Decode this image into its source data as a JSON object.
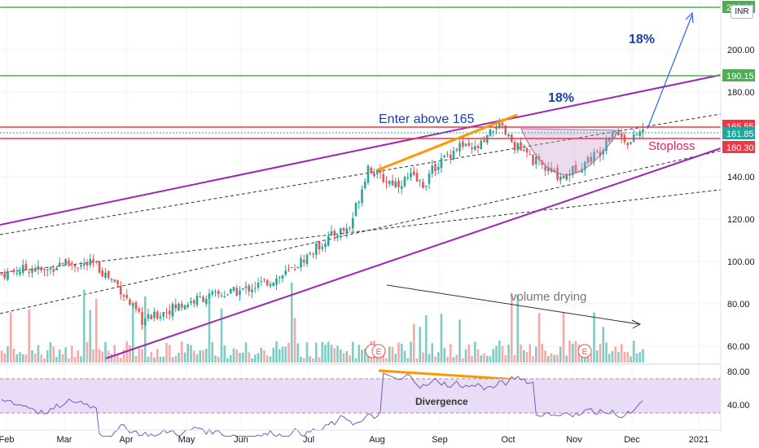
{
  "chart_data": {
    "type": "candlestick",
    "currency_badge": "INR",
    "y_ticks": [
      "80.00",
      "100.00",
      "120.00",
      "140.00",
      "160.00",
      "180.00",
      "200.00",
      "220.00"
    ],
    "x_ticks": [
      "Feb",
      "Mar",
      "Apr",
      "May",
      "Jun",
      "Jul",
      "Aug",
      "Sep",
      "Oct",
      "Nov",
      "Dec",
      "2021"
    ],
    "rsi_ticks": [
      "80.00",
      "40.00"
    ],
    "volume_ticks": [
      "80.00",
      "60.00"
    ],
    "ohlc_approx": [
      [
        0,
        94
      ],
      [
        6,
        96
      ],
      [
        10,
        97
      ],
      [
        14,
        95
      ],
      [
        20,
        100
      ],
      [
        26,
        98
      ],
      [
        30,
        99
      ],
      [
        34,
        94
      ],
      [
        38,
        89
      ],
      [
        42,
        80
      ],
      [
        46,
        72
      ],
      [
        50,
        74
      ],
      [
        54,
        77
      ],
      [
        58,
        79
      ],
      [
        62,
        81
      ],
      [
        66,
        83
      ],
      [
        70,
        84
      ],
      [
        74,
        85
      ],
      [
        78,
        86
      ],
      [
        82,
        88
      ],
      [
        86,
        90
      ],
      [
        90,
        92
      ],
      [
        94,
        95
      ],
      [
        98,
        100
      ],
      [
        102,
        105
      ],
      [
        106,
        110
      ],
      [
        110,
        114
      ],
      [
        114,
        116
      ],
      [
        116,
        126
      ],
      [
        118,
        135
      ],
      [
        120,
        145
      ],
      [
        122,
        142
      ],
      [
        126,
        138
      ],
      [
        130,
        137
      ],
      [
        134,
        140
      ],
      [
        138,
        136
      ],
      [
        142,
        145
      ],
      [
        146,
        150
      ],
      [
        150,
        155
      ],
      [
        154,
        152
      ],
      [
        158,
        156
      ],
      [
        160,
        160
      ],
      [
        162,
        165
      ],
      [
        164,
        162
      ],
      [
        166,
        158
      ],
      [
        168,
        155
      ],
      [
        172,
        150
      ],
      [
        176,
        146
      ],
      [
        180,
        142
      ],
      [
        184,
        140
      ],
      [
        188,
        144
      ],
      [
        192,
        148
      ],
      [
        196,
        152
      ],
      [
        198,
        158
      ],
      [
        200,
        162
      ],
      [
        202,
        160
      ],
      [
        204,
        158
      ],
      [
        206,
        156
      ],
      [
        208,
        160
      ],
      [
        210,
        162
      ]
    ],
    "price_labels": [
      {
        "text": "220.00",
        "color": "#4caf50"
      },
      {
        "text": "190.15",
        "color": "#4caf50"
      },
      {
        "text": "165.55",
        "color": "#f23645"
      },
      {
        "text": "161.85",
        "color": "#26a69a"
      },
      {
        "text": "160.30",
        "color": "#f23645"
      }
    ],
    "annotations": {
      "enter": "Enter above 165",
      "target_pct_1": "18%",
      "target_pct_2": "18%",
      "stoploss": "Stoploss",
      "volume": "volume drying",
      "divergence": "Divergence",
      "earnings_marker": "E"
    },
    "colors": {
      "up": "#26a69a",
      "down": "#ef5350",
      "channel": "#9c27b0",
      "target_line": "#4caf50",
      "entry_line": "#f23645",
      "orange": "#ff9800",
      "rsi_line": "#7e57c2",
      "rsi_band": "#e8dcf7",
      "blue_text": "#1a3fa8"
    }
  }
}
